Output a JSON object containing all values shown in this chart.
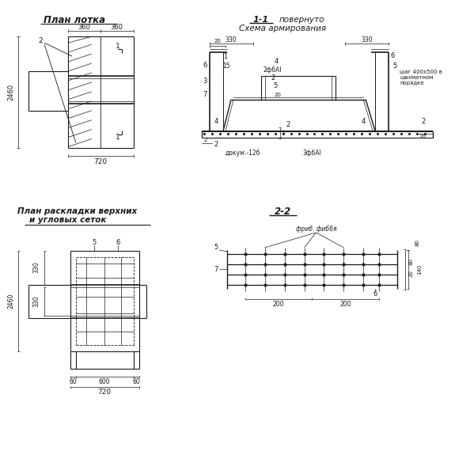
{
  "bg_color": "#ffffff",
  "lc": "#1a1a1a",
  "titles": {
    "plan_lotka": "План лотка",
    "sect11_a": "1-1",
    "sect11_b": "повернуто",
    "sect11_c": "Схема армирования",
    "plan_raskl_a": "План раскладки верхних",
    "plan_raskl_b": "и угловых сеток",
    "sect22": "2-2",
    "dokum": "докум.-12б",
    "bar1": "3ф6АI",
    "bar2": "2ф6АI",
    "shag": "шаг 400х500 в\nшахматном\nпорядке",
    "frib": "фриб. фиб6я"
  }
}
